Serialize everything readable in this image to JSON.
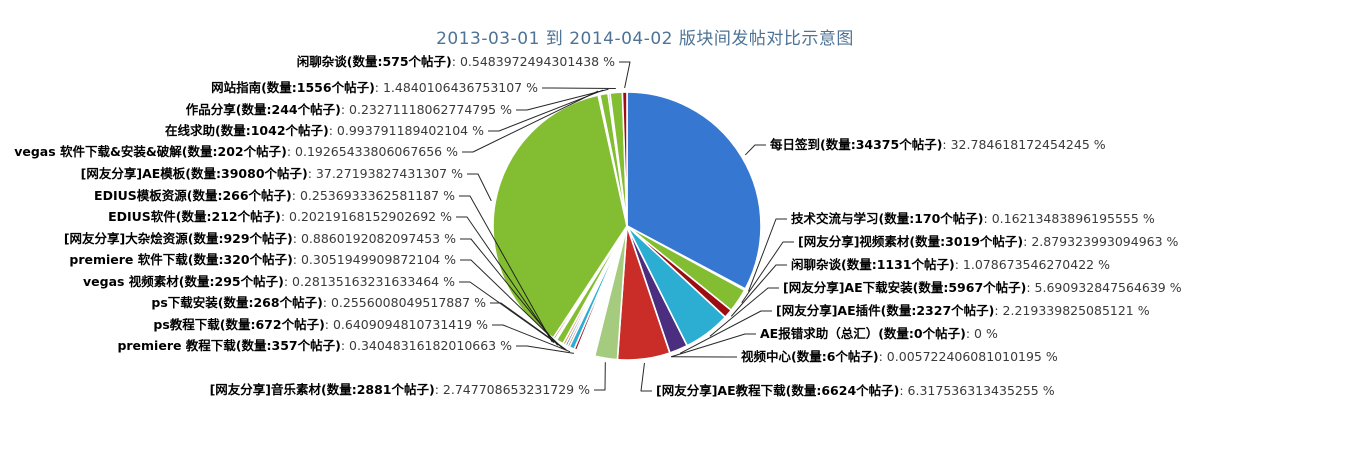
{
  "title": "2013-03-01 到 2014-04-02 版块间发帖对比示意图",
  "chart_data": {
    "type": "pie",
    "title": "2013-03-01 到 2014-04-02 版块间发帖对比示意图",
    "label_format": "{name}(数量:{count}个帖子): {percent} %",
    "start_angle": "top",
    "direction": "clockwise",
    "legend_position": "none",
    "slices": [
      {
        "name": "每日签到",
        "count": 34375,
        "percent": "32.784618172454245",
        "color": "#3678D1",
        "label_side": "right"
      },
      {
        "name": "技术交流与学习",
        "count": 170,
        "percent": "0.16213483896195555",
        "color": "#83BD31",
        "label_side": "right"
      },
      {
        "name": "[网友分享]视频素材",
        "count": 3019,
        "percent": "2.879323993094963",
        "color": "#83BD31",
        "label_side": "right"
      },
      {
        "name": "闲聊杂谈",
        "count": 1131,
        "percent": "1.078673546270422",
        "color": "#9C0D13",
        "label_side": "right"
      },
      {
        "name": "[网友分享]AE下载安装",
        "count": 5967,
        "percent": "5.690932847564639",
        "color": "#2BAED2",
        "label_side": "right"
      },
      {
        "name": "[网友分享]AE插件",
        "count": 2327,
        "percent": "2.219339825085121",
        "color": "#4C2E80",
        "label_side": "right"
      },
      {
        "name": "AE报错求助（总汇）",
        "count": 0,
        "percent": "0",
        "color": "#83BD31",
        "label_side": "right"
      },
      {
        "name": "视频中心",
        "count": 6,
        "percent": "0.005722406081010195",
        "color": "#9C0D13",
        "label_side": "right"
      },
      {
        "name": "[网友分享]AE教程下载",
        "count": 6624,
        "percent": "6.317536313435255",
        "color": "#CA2D28",
        "label_side": "right"
      },
      {
        "name": "[网友分享]音乐素材",
        "count": 2881,
        "percent": "2.747708653231729",
        "color": "#A5CC7E",
        "label_side": "left"
      },
      {
        "name": "premiere 教程下载",
        "count": 357,
        "percent": "0.34048316182010663",
        "color": "#9C0D13",
        "label_side": "left"
      },
      {
        "name": "ps教程下载",
        "count": 672,
        "percent": "0.6409094810731419",
        "color": "#2BAED2",
        "label_side": "left"
      },
      {
        "name": "ps下载安装",
        "count": 268,
        "percent": "0.2556008049517887",
        "color": "#CA2D28",
        "label_side": "left"
      },
      {
        "name": "vegas 视频素材",
        "count": 295,
        "percent": "0.28135163231633464",
        "color": "#3678D1",
        "label_side": "left"
      },
      {
        "name": "premiere 软件下载",
        "count": 320,
        "percent": "0.3051949909872104",
        "color": "#E8821E",
        "label_side": "left"
      },
      {
        "name": "[网友分享]大杂烩资源",
        "count": 929,
        "percent": "0.8860192082097453",
        "color": "#83BD31",
        "label_side": "left"
      },
      {
        "name": "EDIUS软件",
        "count": 212,
        "percent": "0.20219168152902692",
        "color": "#3678D1",
        "label_side": "left"
      },
      {
        "name": "EDIUS模板资源",
        "count": 266,
        "percent": "0.2536933362581187",
        "color": "#CA2D28",
        "label_side": "left"
      },
      {
        "name": "[网友分享]AE模板",
        "count": 39080,
        "percent": "37.27193827431307",
        "color": "#83BD31",
        "label_side": "left"
      },
      {
        "name": "vegas 软件下载&安装&破解",
        "count": 202,
        "percent": "0.19265433806067656",
        "color": "#CA2D28",
        "label_side": "left"
      },
      {
        "name": "在线求助",
        "count": 1042,
        "percent": "0.993791189402104",
        "color": "#83BD31",
        "label_side": "left"
      },
      {
        "name": "作品分享",
        "count": 244,
        "percent": "0.23271118062774795",
        "color": "#2BAED2",
        "label_side": "left"
      },
      {
        "name": "网站指南",
        "count": 1556,
        "percent": "1.4840106436753107",
        "color": "#83BD31",
        "label_side": "left"
      },
      {
        "name": "闲聊杂谈",
        "count": 575,
        "percent": "0.5483972494301438",
        "color": "#9C0D13",
        "label_side": "left"
      }
    ]
  }
}
